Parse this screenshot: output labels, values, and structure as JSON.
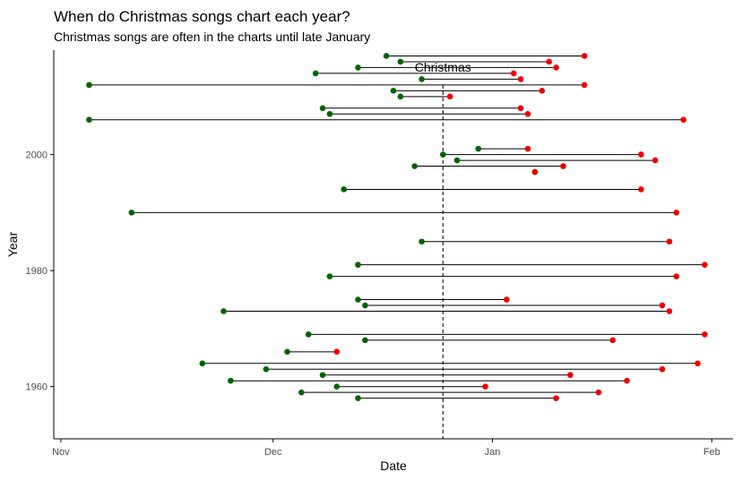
{
  "chart_data": {
    "type": "dumbbell",
    "title": "When do Christmas songs chart each year?",
    "subtitle": "Christmas songs are often in the charts until late January",
    "xlabel": "Date",
    "ylabel": "Year",
    "x_unit": "days since Nov 1",
    "xlim": [
      -1,
      95
    ],
    "ylim": [
      2018,
      1951
    ],
    "x_ticks": [
      {
        "value": 0,
        "label": "Nov"
      },
      {
        "value": 30,
        "label": "Dec"
      },
      {
        "value": 61,
        "label": "Jan"
      },
      {
        "value": 92,
        "label": "Feb"
      }
    ],
    "y_ticks": [
      {
        "value": 1960,
        "label": "1960"
      },
      {
        "value": 1980,
        "label": "1980"
      },
      {
        "value": 2000,
        "label": "2000"
      }
    ],
    "reference_line": {
      "x": 54,
      "label": "Christmas"
    },
    "colors": {
      "start": "#006400",
      "end": "#ee0000",
      "segment": "#000000",
      "reference": "#000000"
    },
    "series": [
      {
        "year": 1958,
        "start": 42,
        "end": 70
      },
      {
        "year": 1959,
        "start": 34,
        "end": 76
      },
      {
        "year": 1960,
        "start": 39,
        "end": 60
      },
      {
        "year": 1961,
        "start": 24,
        "end": 80
      },
      {
        "year": 1962,
        "start": 37,
        "end": 72
      },
      {
        "year": 1963,
        "start": 29,
        "end": 85
      },
      {
        "year": 1964,
        "start": 20,
        "end": 90
      },
      {
        "year": 1966,
        "start": 32,
        "end": 39
      },
      {
        "year": 1968,
        "start": 43,
        "end": 78
      },
      {
        "year": 1969,
        "start": 35,
        "end": 91
      },
      {
        "year": 1973,
        "start": 23,
        "end": 86
      },
      {
        "year": 1974,
        "start": 43,
        "end": 85
      },
      {
        "year": 1975,
        "start": 42,
        "end": 63
      },
      {
        "year": 1979,
        "start": 38,
        "end": 87
      },
      {
        "year": 1981,
        "start": 42,
        "end": 91
      },
      {
        "year": 1985,
        "start": 51,
        "end": 86
      },
      {
        "year": 1990,
        "start": 10,
        "end": 87
      },
      {
        "year": 1994,
        "start": 40,
        "end": 82
      },
      {
        "year": 1997,
        "start": 67,
        "end": 67
      },
      {
        "year": 1998,
        "start": 50,
        "end": 71
      },
      {
        "year": 1999,
        "start": 56,
        "end": 84
      },
      {
        "year": 2000,
        "start": 54,
        "end": 82
      },
      {
        "year": 2001,
        "start": 59,
        "end": 66
      },
      {
        "year": 2006,
        "start": 4,
        "end": 88
      },
      {
        "year": 2007,
        "start": 38,
        "end": 66
      },
      {
        "year": 2008,
        "start": 37,
        "end": 65
      },
      {
        "year": 2010,
        "start": 48,
        "end": 55
      },
      {
        "year": 2011,
        "start": 47,
        "end": 68
      },
      {
        "year": 2012,
        "start": 4,
        "end": 74
      },
      {
        "year": 2013,
        "start": 51,
        "end": 65
      },
      {
        "year": 2014,
        "start": 36,
        "end": 64
      },
      {
        "year": 2015,
        "start": 42,
        "end": 70
      },
      {
        "year": 2016,
        "start": 48,
        "end": 69
      },
      {
        "year": 2017,
        "start": 46,
        "end": 74
      }
    ]
  }
}
